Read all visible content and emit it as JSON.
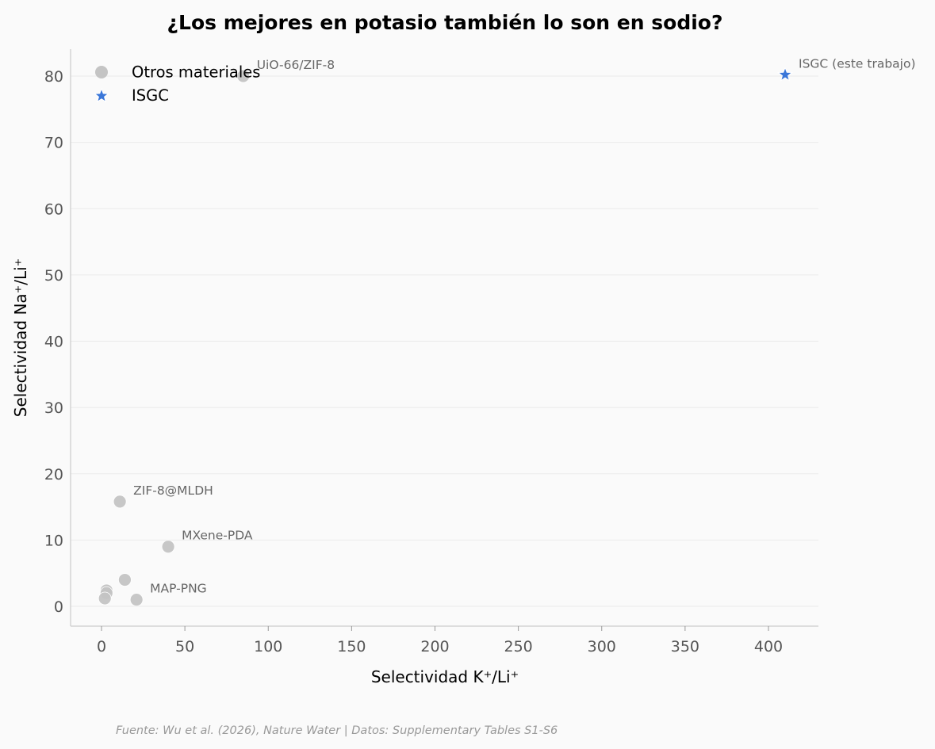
{
  "chart_data": {
    "type": "scatter",
    "title": "¿Los mejores en potasio también lo son en sodio?",
    "xlabel": "Selectividad K⁺/Li⁺",
    "ylabel": "Selectividad Na⁺/Li⁺",
    "xlim": [
      -18.5,
      430
    ],
    "ylim": [
      -3,
      84.2
    ],
    "xticks": [
      0,
      50,
      100,
      150,
      200,
      250,
      300,
      350,
      400
    ],
    "yticks": [
      0,
      10,
      20,
      30,
      40,
      50,
      60,
      70,
      80
    ],
    "grid": "y-only",
    "legend_position": "upper left",
    "series": [
      {
        "name": "Otros materiales",
        "marker": "circle",
        "color": "#c4c4c4",
        "points": [
          {
            "x": 85,
            "y": 80,
            "label": "UiO-66/ZIF-8"
          },
          {
            "x": 11,
            "y": 15.8,
            "label": "ZIF-8@MLDH"
          },
          {
            "x": 40,
            "y": 9,
            "label": "MXene-PDA"
          },
          {
            "x": 21,
            "y": 1,
            "label": "MAP-PNG"
          },
          {
            "x": 14,
            "y": 4,
            "label": ""
          },
          {
            "x": 3,
            "y": 2.4,
            "label": ""
          },
          {
            "x": 3,
            "y": 2,
            "label": ""
          },
          {
            "x": 2,
            "y": 1.2,
            "label": ""
          }
        ]
      },
      {
        "name": "ISGC",
        "marker": "star",
        "color": "#3a76d8",
        "points": [
          {
            "x": 410,
            "y": 80.2,
            "label": "ISGC (este trabajo)"
          }
        ]
      }
    ],
    "source_note": "Fuente: Wu et al. (2026), Nature Water | Datos: Supplementary Tables S1-S6"
  },
  "legend": {
    "items": [
      {
        "label": "Otros materiales",
        "icon": "circle-marker-icon",
        "color": "#c4c4c4"
      },
      {
        "label": "ISGC",
        "icon": "star-marker-icon",
        "color": "#3a76d8"
      }
    ]
  },
  "colors": {
    "background": "#fafafa",
    "grid": "#ebebeb",
    "spine": "#cccccc",
    "other_materials": "#c4c4c4",
    "isgc": "#3a76d8",
    "annotation": "#666666"
  }
}
